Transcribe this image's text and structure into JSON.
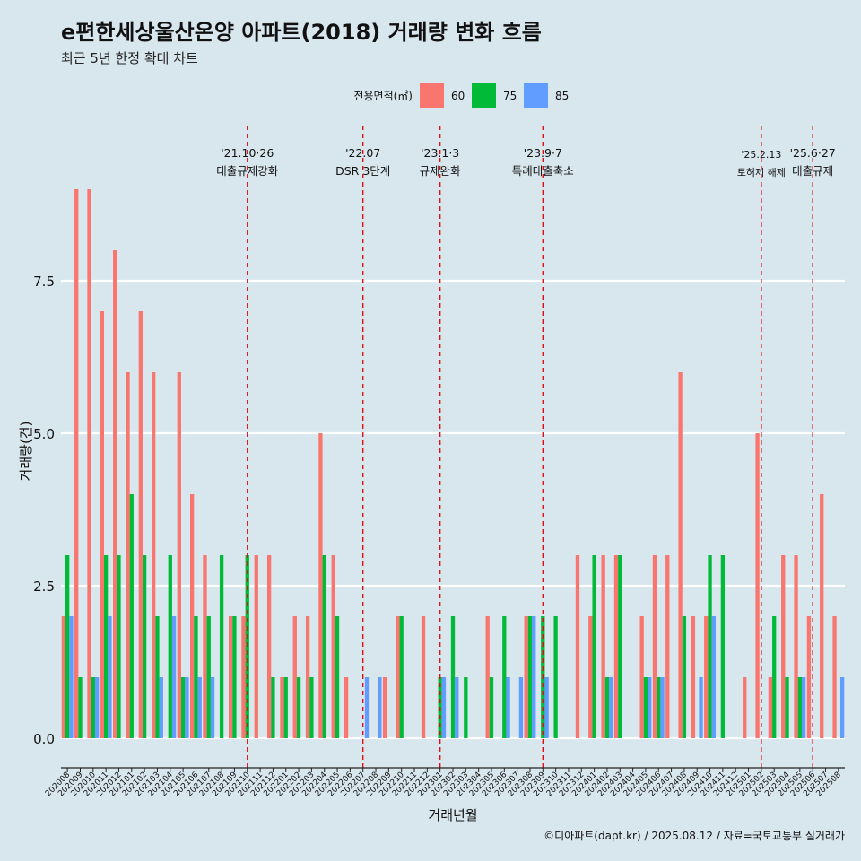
{
  "chart_data": {
    "type": "bar",
    "title": "e편한세상울산온양 아파트(2018) 거래량 변화 흐름",
    "subtitle": "최근 5년 한정 확대 차트",
    "xlabel": "거래년월",
    "ylabel": "거래량(건)",
    "caption": "©디아파트(dapt.kr) / 2025.08.12 / 자료=국토교통부 실거래가",
    "legend": {
      "title": "전용면적(㎡)",
      "position": "top",
      "items": [
        {
          "name": "60",
          "color": "#f8766d"
        },
        {
          "name": "75",
          "color": "#00ba38"
        },
        {
          "name": "85",
          "color": "#619cff"
        }
      ]
    },
    "ylim": [
      0,
      9
    ],
    "yticks": [
      "0.0",
      "2.5",
      "5.0",
      "7.5"
    ],
    "yticks_values": [
      0,
      2.5,
      5,
      7.5
    ],
    "grid": "horizontal",
    "categories": [
      "202008",
      "202009",
      "202010",
      "202011",
      "202012",
      "202101",
      "202102",
      "202103",
      "202104",
      "202105",
      "202106",
      "202107",
      "202108",
      "202109",
      "202110",
      "202111",
      "202112",
      "202201",
      "202202",
      "202203",
      "202204",
      "202205",
      "202206",
      "202207",
      "202208",
      "202209",
      "202210",
      "202211",
      "202212",
      "202301",
      "202302",
      "202303",
      "202304",
      "202305",
      "202306",
      "202307",
      "202308",
      "202309",
      "202310",
      "202311",
      "202312",
      "202401",
      "202402",
      "202403",
      "202404",
      "202405",
      "202406",
      "202407",
      "202408",
      "202409",
      "202410",
      "202411",
      "202412",
      "202501",
      "202502",
      "202503",
      "202504",
      "202505",
      "202506",
      "202507",
      "202508"
    ],
    "series": [
      {
        "name": "60",
        "values": [
          2,
          9,
          9,
          7,
          8,
          6,
          7,
          6,
          0,
          6,
          4,
          3,
          0,
          2,
          2,
          3,
          3,
          1,
          2,
          2,
          5,
          3,
          1,
          0,
          0,
          1,
          2,
          0,
          2,
          0,
          0,
          0,
          0,
          2,
          0,
          0,
          2,
          0,
          0,
          0,
          3,
          2,
          3,
          3,
          0,
          2,
          3,
          3,
          6,
          2,
          2,
          0,
          0,
          1,
          5,
          1,
          3,
          3,
          2,
          4,
          2
        ]
      },
      {
        "name": "75",
        "values": [
          3,
          1,
          1,
          3,
          3,
          4,
          3,
          2,
          3,
          1,
          2,
          2,
          3,
          2,
          3,
          0,
          1,
          1,
          1,
          1,
          3,
          2,
          0,
          0,
          0,
          0,
          2,
          0,
          0,
          1,
          2,
          1,
          0,
          1,
          2,
          0,
          2,
          2,
          2,
          0,
          0,
          3,
          1,
          3,
          0,
          1,
          1,
          0,
          2,
          0,
          3,
          3,
          0,
          0,
          0,
          2,
          1,
          1,
          0,
          0,
          0
        ]
      },
      {
        "name": "85",
        "values": [
          2,
          0,
          1,
          2,
          0,
          0,
          0,
          1,
          2,
          1,
          1,
          1,
          0,
          0,
          0,
          0,
          0,
          0,
          0,
          0,
          0,
          0,
          0,
          1,
          1,
          0,
          0,
          0,
          0,
          1,
          1,
          0,
          0,
          0,
          1,
          1,
          2,
          1,
          0,
          0,
          0,
          0,
          1,
          0,
          0,
          1,
          1,
          0,
          0,
          1,
          2,
          0,
          0,
          0,
          0,
          0,
          0,
          1,
          0,
          0,
          1
        ]
      }
    ],
    "events": [
      {
        "date": "202110",
        "label1": "'21.10·26",
        "label2": "대출규제강화"
      },
      {
        "date": "202207",
        "label1": "'22.07",
        "label2": "DSR 3단계"
      },
      {
        "date": "202301",
        "label1": "'23.1·3",
        "label2": "규제완화"
      },
      {
        "date": "202309",
        "label1": "'23.9·7",
        "label2": "특례대출축소"
      },
      {
        "date": "202502",
        "label1": "'25.2.13",
        "label2": "토허제 해제"
      },
      {
        "date": "202506",
        "label1": "'25.6·27",
        "label2": "대출규제"
      }
    ]
  }
}
